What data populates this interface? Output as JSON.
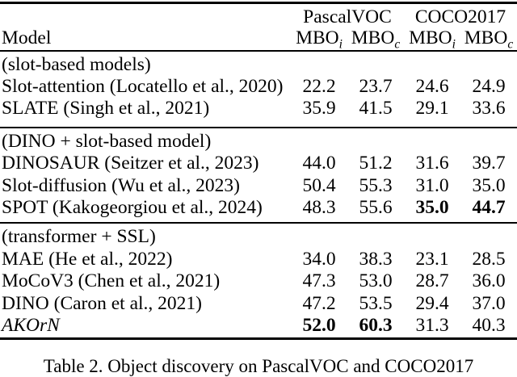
{
  "table": {
    "header": {
      "model_label": "Model",
      "groups": [
        {
          "label": "PascalVOC"
        },
        {
          "label": "COCO2017"
        }
      ],
      "subcols": [
        {
          "base": "MBO",
          "sub": "i"
        },
        {
          "base": "MBO",
          "sub": "c"
        },
        {
          "base": "MBO",
          "sub": "i"
        },
        {
          "base": "MBO",
          "sub": "c"
        }
      ]
    },
    "sections": [
      {
        "group_label": "(slot-based models)",
        "rows": [
          {
            "model": "Slot-attention (Locatello et al., 2020)",
            "values": [
              "22.2",
              "23.7",
              "24.6",
              "24.9"
            ]
          },
          {
            "model": "SLATE (Singh et al., 2021)",
            "values": [
              "35.9",
              "41.5",
              "29.1",
              "33.6"
            ]
          }
        ]
      },
      {
        "group_label": "(DINO + slot-based model)",
        "rows": [
          {
            "model": "DINOSAUR (Seitzer et al., 2023)",
            "values": [
              "44.0",
              "51.2",
              "31.6",
              "39.7"
            ]
          },
          {
            "model": "Slot-diffusion (Wu et al., 2023)",
            "values": [
              "50.4",
              "55.3",
              "31.0",
              "35.0"
            ]
          },
          {
            "model": "SPOT (Kakogeorgiou et al., 2024)",
            "values": [
              "48.3",
              "55.6",
              "35.0",
              "44.7"
            ]
          }
        ]
      },
      {
        "group_label": "(transformer + SSL)",
        "rows": [
          {
            "model": "MAE (He et al., 2022)",
            "values": [
              "34.0",
              "38.3",
              "23.1",
              "28.5"
            ]
          },
          {
            "model": "MoCoV3 (Chen et al., 2021)",
            "values": [
              "47.3",
              "53.0",
              "28.7",
              "36.0"
            ]
          },
          {
            "model": "DINO (Caron et al., 2021)",
            "values": [
              "47.2",
              "53.5",
              "29.4",
              "37.0"
            ]
          },
          {
            "model": "AKOrN",
            "values": [
              "52.0",
              "60.3",
              "31.3",
              "40.3"
            ]
          }
        ]
      }
    ],
    "caption": "Table 2. Object discovery on PascalVOC and COCO2017"
  }
}
